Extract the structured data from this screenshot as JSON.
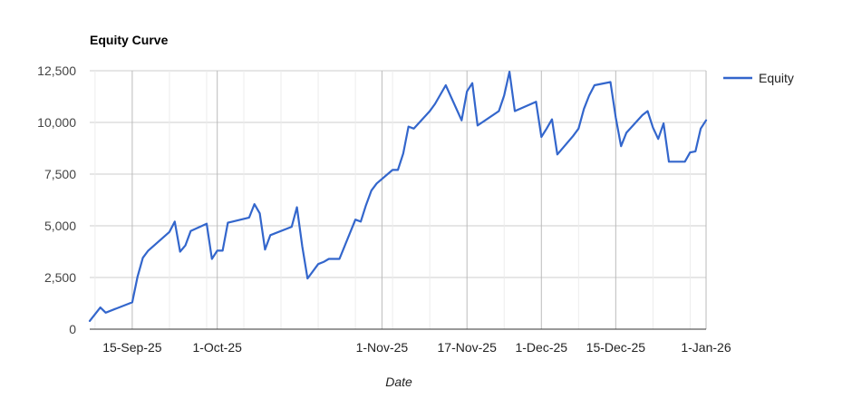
{
  "chart_data": {
    "type": "line",
    "title": "Equity Curve",
    "xlabel": "Date",
    "ylabel": "",
    "ylim": [
      0,
      12500
    ],
    "yticks": [
      0,
      2500,
      5000,
      7500,
      10000,
      12500
    ],
    "ytick_labels": [
      "0",
      "2,500",
      "5,000",
      "7,500",
      "10,000",
      "12,500"
    ],
    "xlim": [
      "2025-09-07",
      "2026-01-01"
    ],
    "xticks": [
      "2025-09-15",
      "2025-10-01",
      "2025-11-01",
      "2025-11-17",
      "2025-12-01",
      "2025-12-15",
      "2026-01-01"
    ],
    "xtick_labels": [
      "15-Sep-25",
      "1-Oct-25",
      "1-Nov-25",
      "17-Nov-25",
      "1-Dec-25",
      "15-Dec-25",
      "1-Jan-26"
    ],
    "grid": true,
    "legend_position": "right",
    "line_color": "#3366cc",
    "series": [
      {
        "name": "Equity",
        "x": [
          "2025-09-07",
          "2025-09-09",
          "2025-09-10",
          "2025-09-15",
          "2025-09-16",
          "2025-09-17",
          "2025-09-18",
          "2025-09-22",
          "2025-09-23",
          "2025-09-24",
          "2025-09-25",
          "2025-09-26",
          "2025-09-29",
          "2025-09-30",
          "2025-10-01",
          "2025-10-02",
          "2025-10-03",
          "2025-10-07",
          "2025-10-08",
          "2025-10-09",
          "2025-10-10",
          "2025-10-11",
          "2025-10-15",
          "2025-10-16",
          "2025-10-17",
          "2025-10-18",
          "2025-10-20",
          "2025-10-21",
          "2025-10-22",
          "2025-10-23",
          "2025-10-24",
          "2025-10-27",
          "2025-10-28",
          "2025-10-29",
          "2025-10-30",
          "2025-10-31",
          "2025-11-03",
          "2025-11-04",
          "2025-11-05",
          "2025-11-06",
          "2025-11-07",
          "2025-11-10",
          "2025-11-11",
          "2025-11-13",
          "2025-11-16",
          "2025-11-17",
          "2025-11-18",
          "2025-11-19",
          "2025-11-23",
          "2025-11-24",
          "2025-11-25",
          "2025-11-26",
          "2025-11-30",
          "2025-12-01",
          "2025-12-02",
          "2025-12-03",
          "2025-12-04",
          "2025-12-07",
          "2025-12-08",
          "2025-12-09",
          "2025-12-10",
          "2025-12-11",
          "2025-12-14",
          "2025-12-15",
          "2025-12-16",
          "2025-12-17",
          "2025-12-20",
          "2025-12-21",
          "2025-12-22",
          "2025-12-23",
          "2025-12-24",
          "2025-12-25",
          "2025-12-28",
          "2025-12-29",
          "2025-12-30",
          "2025-12-31",
          "2026-01-01"
        ],
        "y": [
          400,
          1050,
          800,
          1300,
          2550,
          3450,
          3800,
          4700,
          5200,
          3750,
          4050,
          4750,
          5100,
          3400,
          3800,
          3800,
          5150,
          5400,
          6050,
          5600,
          3850,
          4550,
          4950,
          5900,
          4000,
          2450,
          3150,
          3250,
          3400,
          3400,
          3400,
          5300,
          5200,
          6000,
          6700,
          7050,
          7700,
          7700,
          8500,
          9800,
          9700,
          10550,
          10900,
          11800,
          10100,
          11500,
          11900,
          9850,
          10550,
          11300,
          12450,
          10550,
          11000,
          9300,
          9700,
          10150,
          8450,
          9350,
          9700,
          10650,
          11300,
          11800,
          11950,
          10250,
          8850,
          9500,
          10350,
          10550,
          9750,
          9200,
          9950,
          8100,
          8100,
          8550,
          8600,
          9700,
          10100
        ]
      }
    ]
  }
}
